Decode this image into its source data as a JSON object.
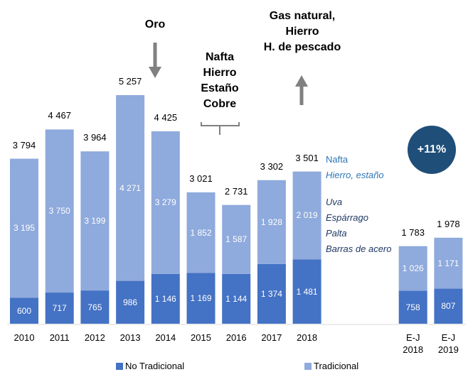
{
  "chart_data": {
    "type": "stacked_bar",
    "categories": [
      "2010",
      "2011",
      "2012",
      "2013",
      "2014",
      "2015",
      "2016",
      "2017",
      "2018",
      null,
      null,
      "E-J 2018",
      "E-J 2019"
    ],
    "series": [
      {
        "name": "No Tradicional",
        "color": "#4472c4",
        "values": [
          600,
          717,
          765,
          986,
          1146,
          1169,
          1144,
          1374,
          1481,
          null,
          null,
          758,
          807
        ],
        "value_labels": [
          "600",
          "717",
          "765",
          "986",
          "1 146",
          "1 169",
          "1 144",
          "1 374",
          "1 481",
          null,
          null,
          "758",
          "807"
        ]
      },
      {
        "name": "Tradicional",
        "color": "#8faadc",
        "values": [
          3195,
          3750,
          3199,
          4271,
          3279,
          1852,
          1587,
          1928,
          2019,
          null,
          null,
          1026,
          1171
        ],
        "value_labels": [
          "3 195",
          "3 750",
          "3 199",
          "4 271",
          "3 279",
          "1 852",
          "1 587",
          "1 928",
          "2 019",
          null,
          null,
          "1 026",
          "1 171"
        ]
      }
    ],
    "totals": [
      3794,
      4467,
      3964,
      5257,
      4425,
      3021,
      2731,
      3302,
      3501,
      null,
      null,
      1783,
      1978
    ],
    "total_labels": [
      "3 794",
      "4 467",
      "3 964",
      "5 257",
      "4 425",
      "3 021",
      "2 731",
      "3 302",
      "3 501",
      null,
      null,
      "1 783",
      "1 978"
    ],
    "annotations": [
      "Oro",
      "Nafta\nHierro\nEstaño\nCobre",
      "Gas natural,\nHierro\nH. de pescado",
      "+11%"
    ],
    "notes_blue": [
      "Nafta",
      "Hierro, estaño"
    ],
    "notes_dark": [
      "Uva",
      "Espárrago",
      "Palta",
      "Barras de acero"
    ],
    "legend": true
  }
}
